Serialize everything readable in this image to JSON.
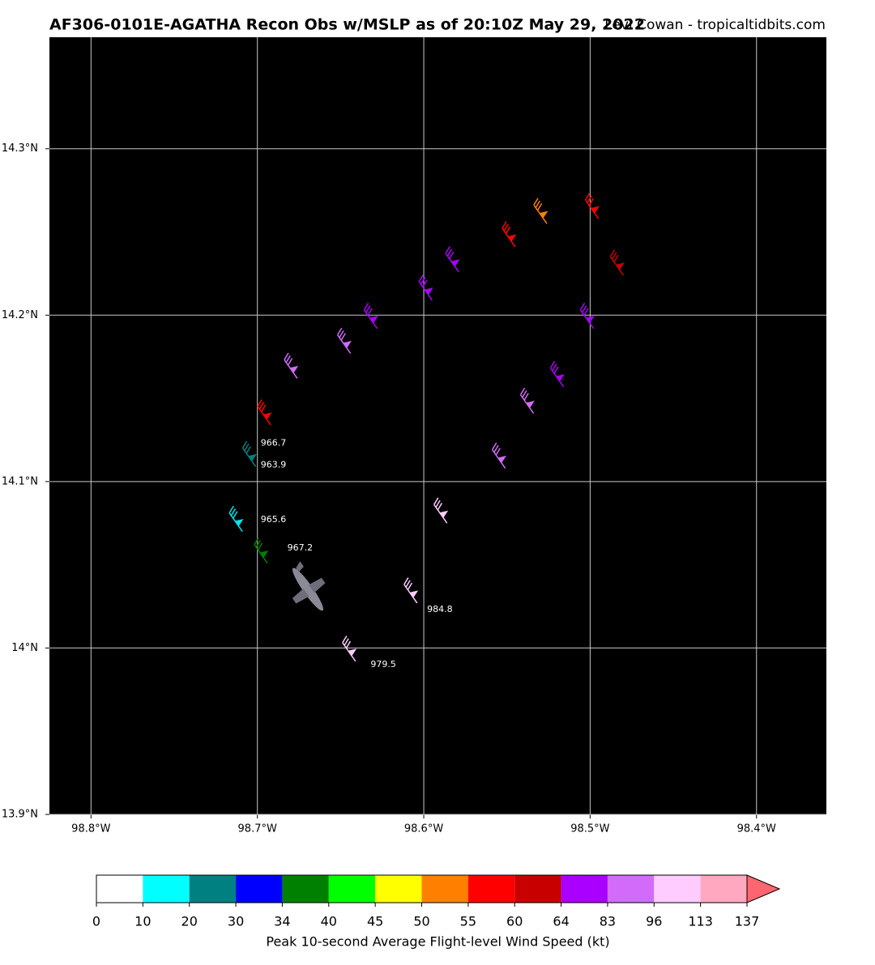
{
  "header": {
    "title": "AF306-0101E-AGATHA Recon Obs w/MSLP as of 20:10Z May 29, 2022",
    "credit": "Levi Cowan - tropicaltidbits.com"
  },
  "map": {
    "lonlim": [
      -98.825,
      -98.358
    ],
    "latlim": [
      13.9,
      14.367
    ],
    "lonticks": [
      {
        "value": -98.8,
        "label": "98.8°W"
      },
      {
        "value": -98.7,
        "label": "98.7°W"
      },
      {
        "value": -98.6,
        "label": "98.6°W"
      },
      {
        "value": -98.5,
        "label": "98.5°W"
      },
      {
        "value": -98.4,
        "label": "98.4°W"
      }
    ],
    "latticks": [
      {
        "value": 14.3,
        "label": "14.3°N"
      },
      {
        "value": 14.2,
        "label": "14.2°N"
      },
      {
        "value": 14.1,
        "label": "14.1°N"
      },
      {
        "value": 14.0,
        "label": "14°N"
      },
      {
        "value": 13.9,
        "label": "13.9°N"
      }
    ],
    "grid": true,
    "observations": [
      {
        "lon": -98.526,
        "lat": 14.255,
        "color": "#ff7f00"
      },
      {
        "lon": -98.495,
        "lat": 14.258,
        "color": "#ff0000"
      },
      {
        "lon": -98.545,
        "lat": 14.241,
        "color": "#ff0000"
      },
      {
        "lon": -98.48,
        "lat": 14.224,
        "color": "#c80000"
      },
      {
        "lon": -98.579,
        "lat": 14.226,
        "color": "#aa00ff"
      },
      {
        "lon": -98.595,
        "lat": 14.209,
        "color": "#aa00ff"
      },
      {
        "lon": -98.498,
        "lat": 14.192,
        "color": "#aa00ff"
      },
      {
        "lon": -98.628,
        "lat": 14.192,
        "color": "#aa00ff"
      },
      {
        "lon": -98.644,
        "lat": 14.177,
        "color": "#d36bfa"
      },
      {
        "lon": -98.676,
        "lat": 14.162,
        "color": "#d36bfa"
      },
      {
        "lon": -98.516,
        "lat": 14.157,
        "color": "#aa00ff"
      },
      {
        "lon": -98.534,
        "lat": 14.141,
        "color": "#d36bfa"
      },
      {
        "lon": -98.692,
        "lat": 14.134,
        "color": "#ff0000"
      },
      {
        "lon": -98.701,
        "lat": 14.109,
        "color": "#008080"
      },
      {
        "lon": -98.551,
        "lat": 14.108,
        "color": "#d36bfa"
      },
      {
        "lon": -98.586,
        "lat": 14.075,
        "color": "#ffccff"
      },
      {
        "lon": -98.709,
        "lat": 14.07,
        "color": "#00e5ee"
      },
      {
        "lon": -98.694,
        "lat": 14.051,
        "color": "#008000"
      },
      {
        "lon": -98.604,
        "lat": 14.027,
        "color": "#ffccff"
      },
      {
        "lon": -98.641,
        "lat": 13.992,
        "color": "#ffccff"
      }
    ],
    "pressure_labels": [
      {
        "text": "966.7",
        "lon": -98.698,
        "lat": 14.123
      },
      {
        "text": "963.9",
        "lon": -98.698,
        "lat": 14.11
      },
      {
        "text": "965.6",
        "lon": -98.698,
        "lat": 14.077
      },
      {
        "text": "967.2",
        "lon": -98.682,
        "lat": 14.06
      },
      {
        "text": "984.8",
        "lon": -98.598,
        "lat": 14.023
      },
      {
        "text": "979.5",
        "lon": -98.632,
        "lat": 13.99
      }
    ]
  },
  "colorbar": {
    "ticks": [
      0,
      10,
      20,
      30,
      34,
      40,
      45,
      50,
      55,
      60,
      64,
      83,
      96,
      113,
      137
    ],
    "colors": [
      "#ffffff",
      "#00ffff",
      "#008080",
      "#0000ff",
      "#008000",
      "#00ff00",
      "#ffff00",
      "#ff8000",
      "#ff0000",
      "#c80000",
      "#aa00ff",
      "#d36bfa",
      "#ffccff",
      "#ffa8c0"
    ],
    "extend_color": "#ff6670",
    "label": "Peak 10-second Average Flight-level Wind Speed (kt)"
  }
}
